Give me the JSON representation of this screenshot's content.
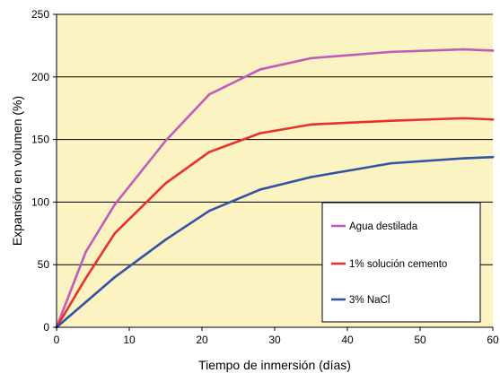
{
  "chart_data": {
    "type": "line",
    "xlabel": "Tiempo de inmersión (días)",
    "ylabel": "Expansión en volumen  (%)",
    "xlim": [
      0,
      60
    ],
    "ylim": [
      0,
      250
    ],
    "x_ticks": [
      0,
      10,
      20,
      30,
      40,
      50,
      60
    ],
    "y_ticks": [
      0,
      50,
      100,
      150,
      200,
      250
    ],
    "grid": "horizontal",
    "legend_position": "lower-right",
    "plot_background": "#fbf3c1",
    "series": [
      {
        "name": "Agua destilada",
        "color": "#c15bbb",
        "x": [
          0,
          4,
          8,
          15,
          21,
          28,
          35,
          46,
          56,
          60
        ],
        "y": [
          0,
          60,
          98,
          149,
          186,
          206,
          215,
          220,
          222,
          221
        ]
      },
      {
        "name": "1%  solución cemento",
        "color": "#e8312a",
        "x": [
          0,
          4,
          8,
          15,
          21,
          28,
          35,
          46,
          56,
          60
        ],
        "y": [
          0,
          39,
          75,
          115,
          140,
          155,
          162,
          165,
          167,
          166
        ]
      },
      {
        "name": "3%  NaCl",
        "color": "#3453a3",
        "x": [
          0,
          8,
          15,
          21,
          28,
          35,
          46,
          56,
          60
        ],
        "y": [
          0,
          40,
          70,
          93,
          110,
          120,
          131,
          135,
          136
        ]
      }
    ]
  }
}
